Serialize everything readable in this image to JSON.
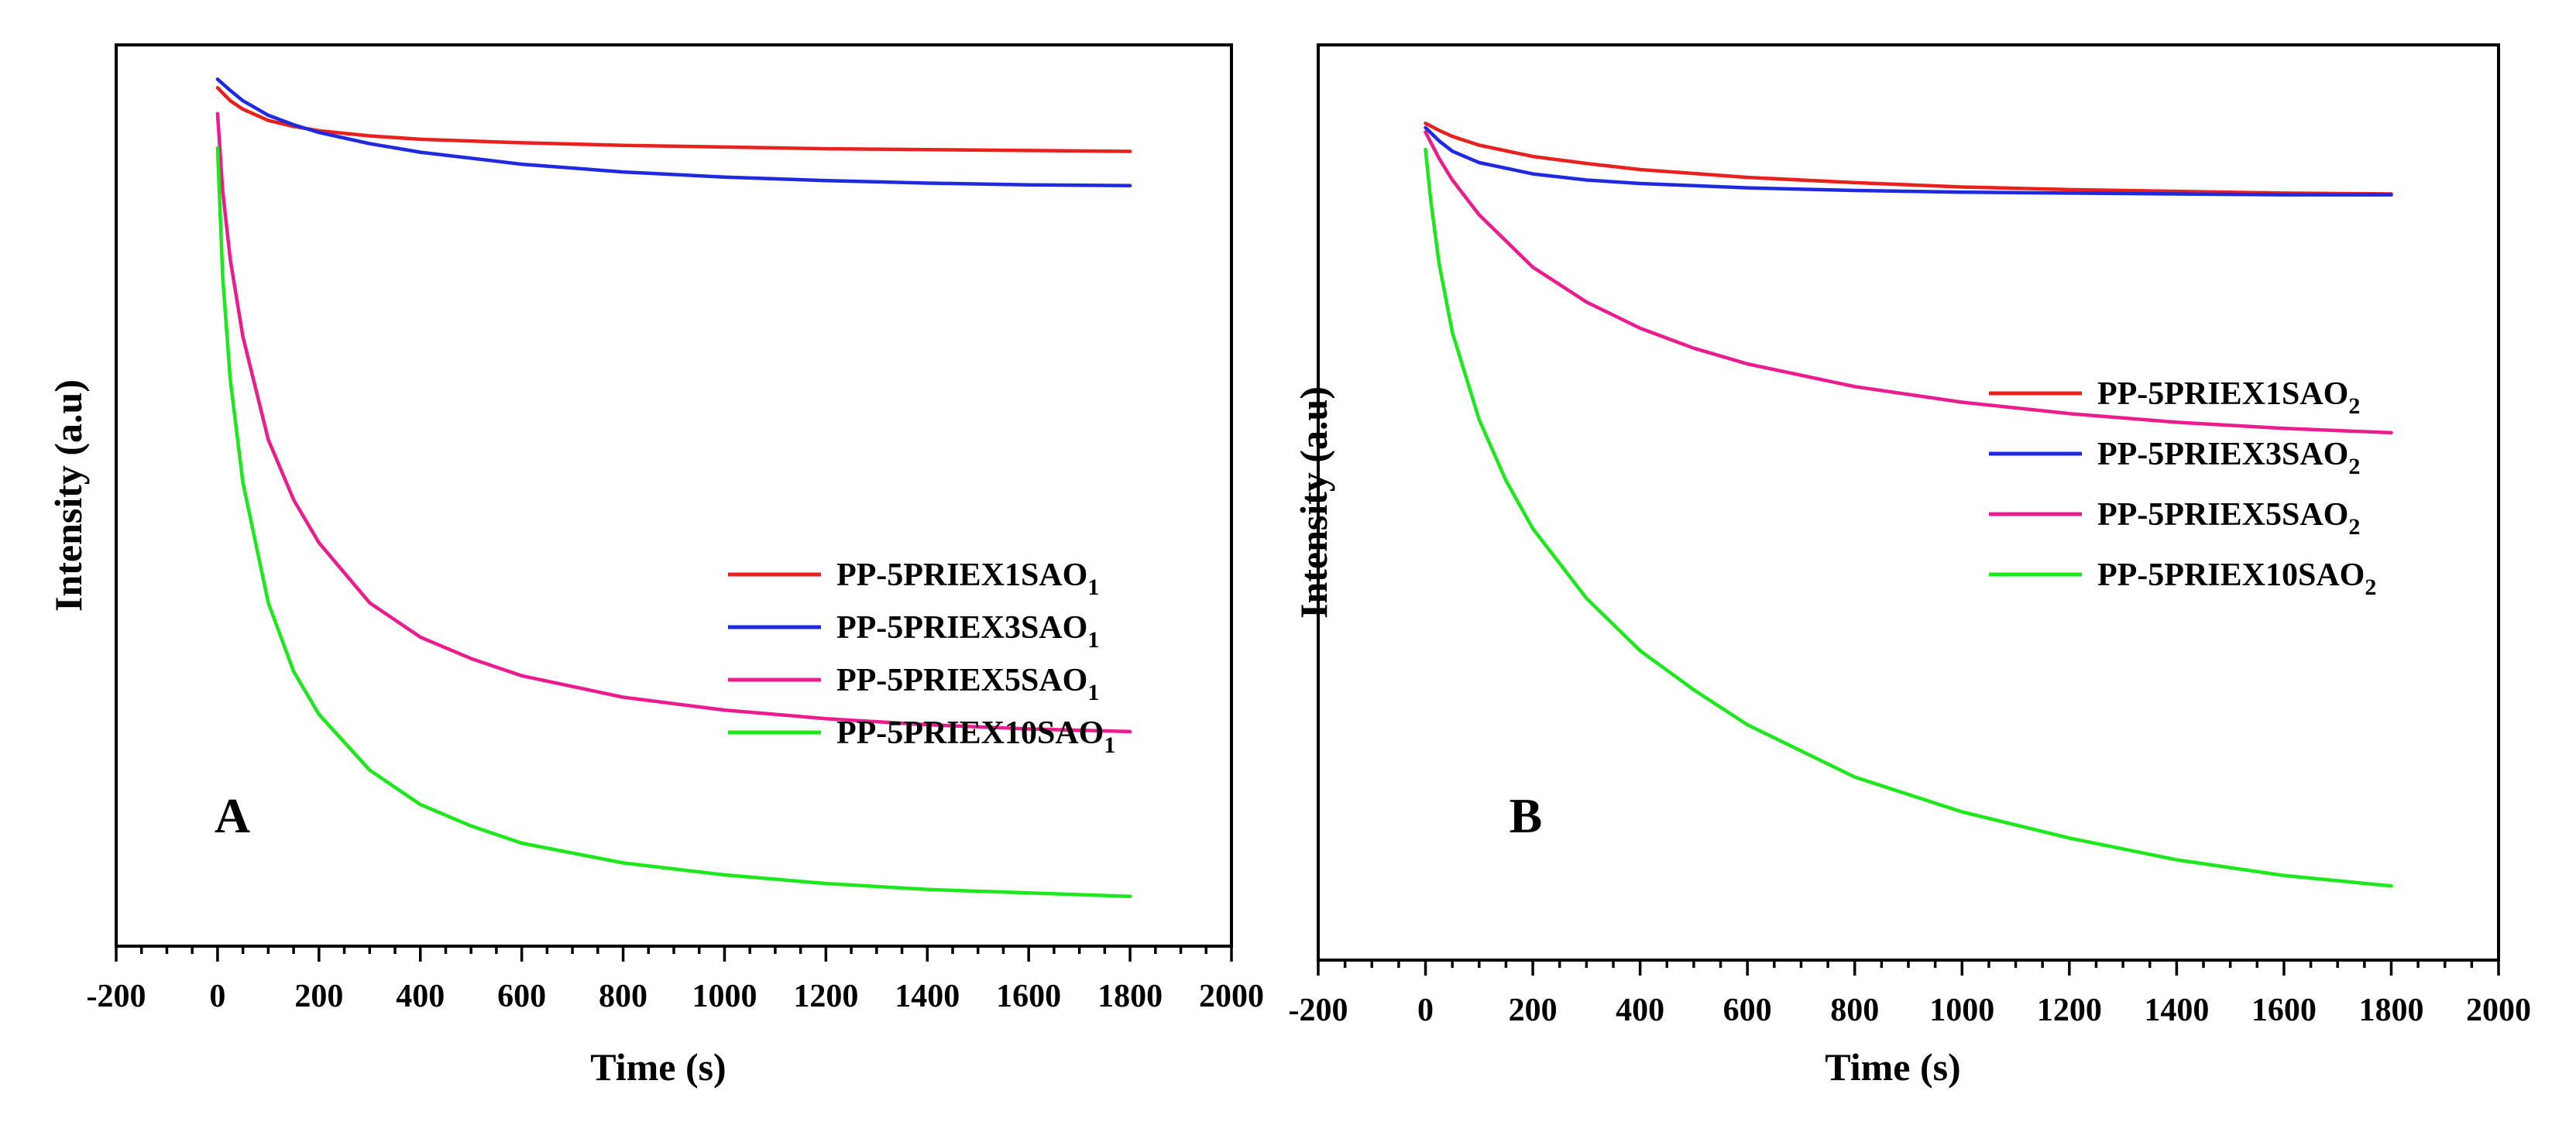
{
  "chart_data": [
    {
      "type": "line",
      "panel_label": "A",
      "xlabel": "Time (s)",
      "ylabel": "Intensity (a.u)",
      "xlim": [
        -200,
        2000
      ],
      "ylim": [
        0,
        1.05
      ],
      "xticks": [
        -200,
        0,
        200,
        400,
        600,
        800,
        1000,
        1200,
        1400,
        1600,
        1800,
        2000
      ],
      "legend_position": "bottom-right",
      "series": [
        {
          "name": "PP-5PRIEX1SAO",
          "subscript": "1",
          "color": "#e8211f",
          "x": [
            0,
            25,
            50,
            100,
            150,
            200,
            300,
            400,
            600,
            800,
            1000,
            1200,
            1400,
            1600,
            1800
          ],
          "y": [
            1.0,
            0.985,
            0.975,
            0.962,
            0.955,
            0.95,
            0.944,
            0.94,
            0.936,
            0.933,
            0.931,
            0.929,
            0.928,
            0.927,
            0.926
          ]
        },
        {
          "name": "PP-5PRIEX3SAO",
          "subscript": "1",
          "color": "#1f2ae0",
          "x": [
            0,
            25,
            50,
            100,
            150,
            200,
            300,
            400,
            600,
            800,
            1000,
            1200,
            1400,
            1600,
            1800
          ],
          "y": [
            1.01,
            0.997,
            0.985,
            0.968,
            0.957,
            0.948,
            0.935,
            0.925,
            0.911,
            0.902,
            0.896,
            0.892,
            0.889,
            0.887,
            0.886
          ]
        },
        {
          "name": "PP-5PRIEX5SAO",
          "subscript": "1",
          "color": "#ec1c8f",
          "x": [
            0,
            10,
            25,
            50,
            100,
            150,
            200,
            300,
            400,
            500,
            600,
            800,
            1000,
            1200,
            1400,
            1600,
            1800
          ],
          "y": [
            0.97,
            0.88,
            0.8,
            0.71,
            0.59,
            0.52,
            0.47,
            0.4,
            0.36,
            0.335,
            0.315,
            0.29,
            0.275,
            0.265,
            0.258,
            0.253,
            0.25
          ]
        },
        {
          "name": "PP-5PRIEX10SAO",
          "subscript": "1",
          "color": "#1ce81c",
          "x": [
            0,
            10,
            25,
            50,
            100,
            150,
            200,
            300,
            400,
            500,
            600,
            800,
            1000,
            1200,
            1400,
            1600,
            1800
          ],
          "y": [
            0.93,
            0.78,
            0.66,
            0.54,
            0.4,
            0.32,
            0.27,
            0.205,
            0.165,
            0.14,
            0.12,
            0.097,
            0.083,
            0.073,
            0.066,
            0.062,
            0.058
          ]
        }
      ]
    },
    {
      "type": "line",
      "panel_label": "B",
      "xlabel": "Time (s)",
      "ylabel": "Intensity (a.u)",
      "xlim": [
        -200,
        2000
      ],
      "ylim": [
        0,
        1.05
      ],
      "xticks": [
        -200,
        0,
        200,
        400,
        600,
        800,
        1000,
        1200,
        1400,
        1600,
        1800,
        2000
      ],
      "legend_position": "top-right",
      "series": [
        {
          "name": "PP-5PRIEX1SAO",
          "subscript": "2",
          "color": "#e8211f",
          "x": [
            0,
            25,
            50,
            100,
            200,
            300,
            400,
            600,
            800,
            1000,
            1200,
            1400,
            1600,
            1800
          ],
          "y": [
            0.96,
            0.952,
            0.945,
            0.935,
            0.922,
            0.914,
            0.907,
            0.898,
            0.892,
            0.887,
            0.884,
            0.882,
            0.88,
            0.879
          ]
        },
        {
          "name": "PP-5PRIEX3SAO",
          "subscript": "2",
          "color": "#1f2ae0",
          "x": [
            0,
            25,
            50,
            100,
            200,
            300,
            400,
            600,
            800,
            1000,
            1200,
            1400,
            1600,
            1800
          ],
          "y": [
            0.955,
            0.94,
            0.928,
            0.915,
            0.902,
            0.895,
            0.891,
            0.886,
            0.883,
            0.881,
            0.88,
            0.879,
            0.878,
            0.878
          ]
        },
        {
          "name": "PP-5PRIEX5SAO",
          "subscript": "2",
          "color": "#ec1c8f",
          "x": [
            0,
            25,
            50,
            100,
            200,
            300,
            400,
            500,
            600,
            800,
            1000,
            1200,
            1400,
            1600,
            1800
          ],
          "y": [
            0.95,
            0.92,
            0.895,
            0.855,
            0.795,
            0.755,
            0.725,
            0.702,
            0.684,
            0.658,
            0.64,
            0.627,
            0.617,
            0.61,
            0.605
          ]
        },
        {
          "name": "PP-5PRIEX10SAO",
          "subscript": "2",
          "color": "#1ce81c",
          "x": [
            0,
            10,
            25,
            50,
            100,
            150,
            200,
            300,
            400,
            500,
            600,
            800,
            1000,
            1200,
            1400,
            1600,
            1800
          ],
          "y": [
            0.93,
            0.87,
            0.8,
            0.72,
            0.62,
            0.55,
            0.495,
            0.415,
            0.355,
            0.31,
            0.27,
            0.21,
            0.17,
            0.14,
            0.115,
            0.097,
            0.085
          ]
        }
      ]
    }
  ]
}
